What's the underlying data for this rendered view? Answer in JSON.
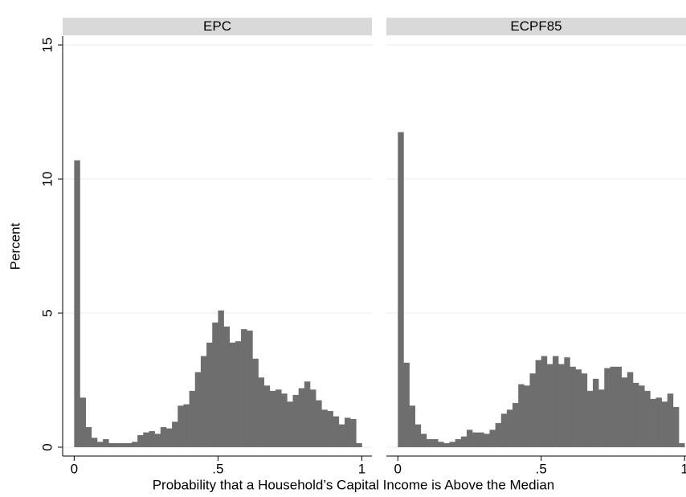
{
  "ylabel": "Percent",
  "xlabel": "Probability that a Household’s Capital Income is Above the Median",
  "chart_data": [
    {
      "type": "histogram",
      "title": "EPC",
      "color": "#6e6e6e",
      "grid": true,
      "bins": [
        0,
        0.02,
        0.04,
        0.06,
        0.08,
        0.1,
        0.12,
        0.14,
        0.16,
        0.18,
        0.2,
        0.22,
        0.24,
        0.26,
        0.28,
        0.3,
        0.32,
        0.34,
        0.36,
        0.38,
        0.4,
        0.42,
        0.44,
        0.46,
        0.48,
        0.5,
        0.52,
        0.54,
        0.56,
        0.58,
        0.6,
        0.62,
        0.64,
        0.66,
        0.68,
        0.7,
        0.72,
        0.74,
        0.76,
        0.78,
        0.8,
        0.82,
        0.84,
        0.86,
        0.88,
        0.9,
        0.92,
        0.94,
        0.96,
        0.98,
        1
      ],
      "values": [
        10.7,
        1.85,
        0.75,
        0.35,
        0.2,
        0.3,
        0.15,
        0.15,
        0.15,
        0.15,
        0.2,
        0.45,
        0.55,
        0.6,
        0.5,
        0.75,
        0.7,
        0.95,
        1.55,
        1.6,
        2.1,
        2.8,
        3.4,
        3.9,
        4.65,
        5.1,
        4.5,
        3.9,
        3.95,
        4.4,
        4.35,
        3.3,
        2.6,
        2.3,
        2.1,
        2.15,
        2.0,
        1.7,
        1.95,
        2.2,
        2.45,
        2.15,
        1.75,
        1.4,
        1.35,
        1.15,
        0.85,
        1.1,
        1.05,
        0.15
      ],
      "xlim": [
        -0.04,
        1.035
      ],
      "ylim": [
        -0.33,
        15.33
      ],
      "xticks": [
        0,
        {
          "value": 0.5,
          "label": ".5"
        },
        1
      ],
      "yticks": [
        0,
        5,
        10,
        15
      ]
    },
    {
      "type": "histogram",
      "title": "ECPF85",
      "color": "#6e6e6e",
      "grid": true,
      "bins": [
        0,
        0.02,
        0.04,
        0.06,
        0.08,
        0.1,
        0.12,
        0.14,
        0.16,
        0.18,
        0.2,
        0.22,
        0.24,
        0.26,
        0.28,
        0.3,
        0.32,
        0.34,
        0.36,
        0.38,
        0.4,
        0.42,
        0.44,
        0.46,
        0.48,
        0.5,
        0.52,
        0.54,
        0.56,
        0.58,
        0.6,
        0.62,
        0.64,
        0.66,
        0.68,
        0.7,
        0.72,
        0.74,
        0.76,
        0.78,
        0.8,
        0.82,
        0.84,
        0.86,
        0.88,
        0.9,
        0.92,
        0.94,
        0.96,
        0.98,
        1
      ],
      "values": [
        11.75,
        3.15,
        1.55,
        0.85,
        0.5,
        0.3,
        0.3,
        0.2,
        0.15,
        0.2,
        0.3,
        0.4,
        0.65,
        0.55,
        0.55,
        0.5,
        0.65,
        0.9,
        1.25,
        1.4,
        1.65,
        2.35,
        2.3,
        2.75,
        3.25,
        3.4,
        3.1,
        3.4,
        3.1,
        3.35,
        3.0,
        2.9,
        2.75,
        2.1,
        2.55,
        2.15,
        2.95,
        3.0,
        3.0,
        2.6,
        2.8,
        2.4,
        2.3,
        2.1,
        1.8,
        1.85,
        1.7,
        2.0,
        1.5,
        0.15
      ],
      "xlim": [
        -0.04,
        1.005
      ],
      "ylim": [
        -0.33,
        15.33
      ],
      "xticks": [
        0,
        {
          "value": 0.5,
          "label": ".5"
        },
        1
      ],
      "yticks": [
        0,
        5,
        10,
        15
      ]
    }
  ]
}
